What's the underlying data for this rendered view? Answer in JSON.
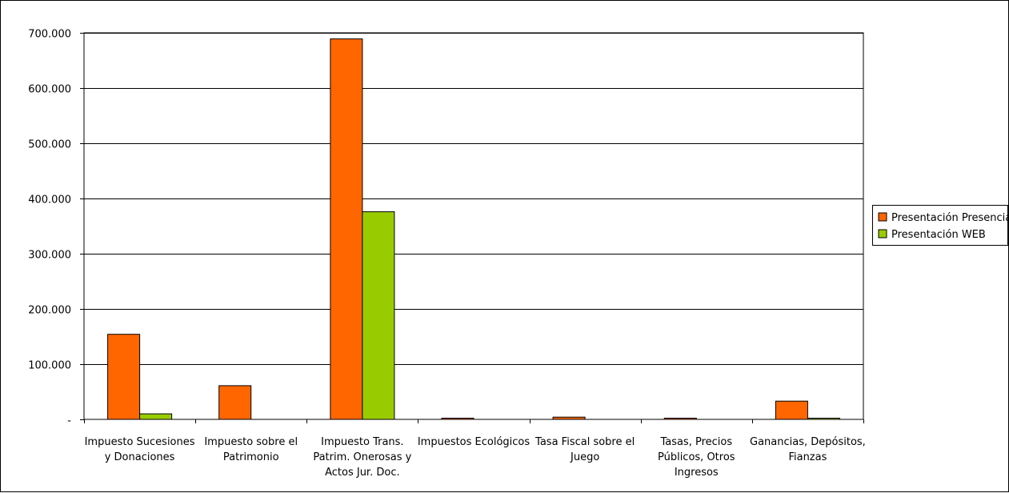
{
  "chart_data": {
    "type": "bar",
    "title": "",
    "xlabel": "",
    "ylabel": "",
    "ylim": [
      0,
      700000
    ],
    "yticks": [
      0,
      100000,
      200000,
      300000,
      400000,
      500000,
      600000,
      700000
    ],
    "ytick_labels": [
      "-",
      "100.000",
      "200.000",
      "300.000",
      "400.000",
      "500.000",
      "600.000",
      "700.000"
    ],
    "grid": true,
    "legend_position": "right",
    "categories": [
      [
        "Impuesto Sucesiones",
        "y Donaciones"
      ],
      [
        "Impuesto sobre el",
        "Patrimonio"
      ],
      [
        "Impuesto Trans.",
        "Patrim. Onerosas y",
        "Actos Jur. Doc."
      ],
      [
        "Impuestos Ecológicos"
      ],
      [
        "Tasa Fiscal sobre el",
        "Juego"
      ],
      [
        "Tasas, Precios",
        "Públicos, Otros",
        "Ingresos"
      ],
      [
        "Ganancias, Depósitos,",
        "Fianzas"
      ]
    ],
    "series": [
      {
        "name": "Presentación Presencial",
        "color": "#ff6600",
        "values": [
          154000,
          61000,
          689000,
          1200,
          4000,
          1500,
          33000
        ]
      },
      {
        "name": "Presentación WEB",
        "color": "#99cc00",
        "values": [
          10000,
          0,
          376000,
          0,
          0,
          0,
          1500
        ]
      }
    ]
  }
}
